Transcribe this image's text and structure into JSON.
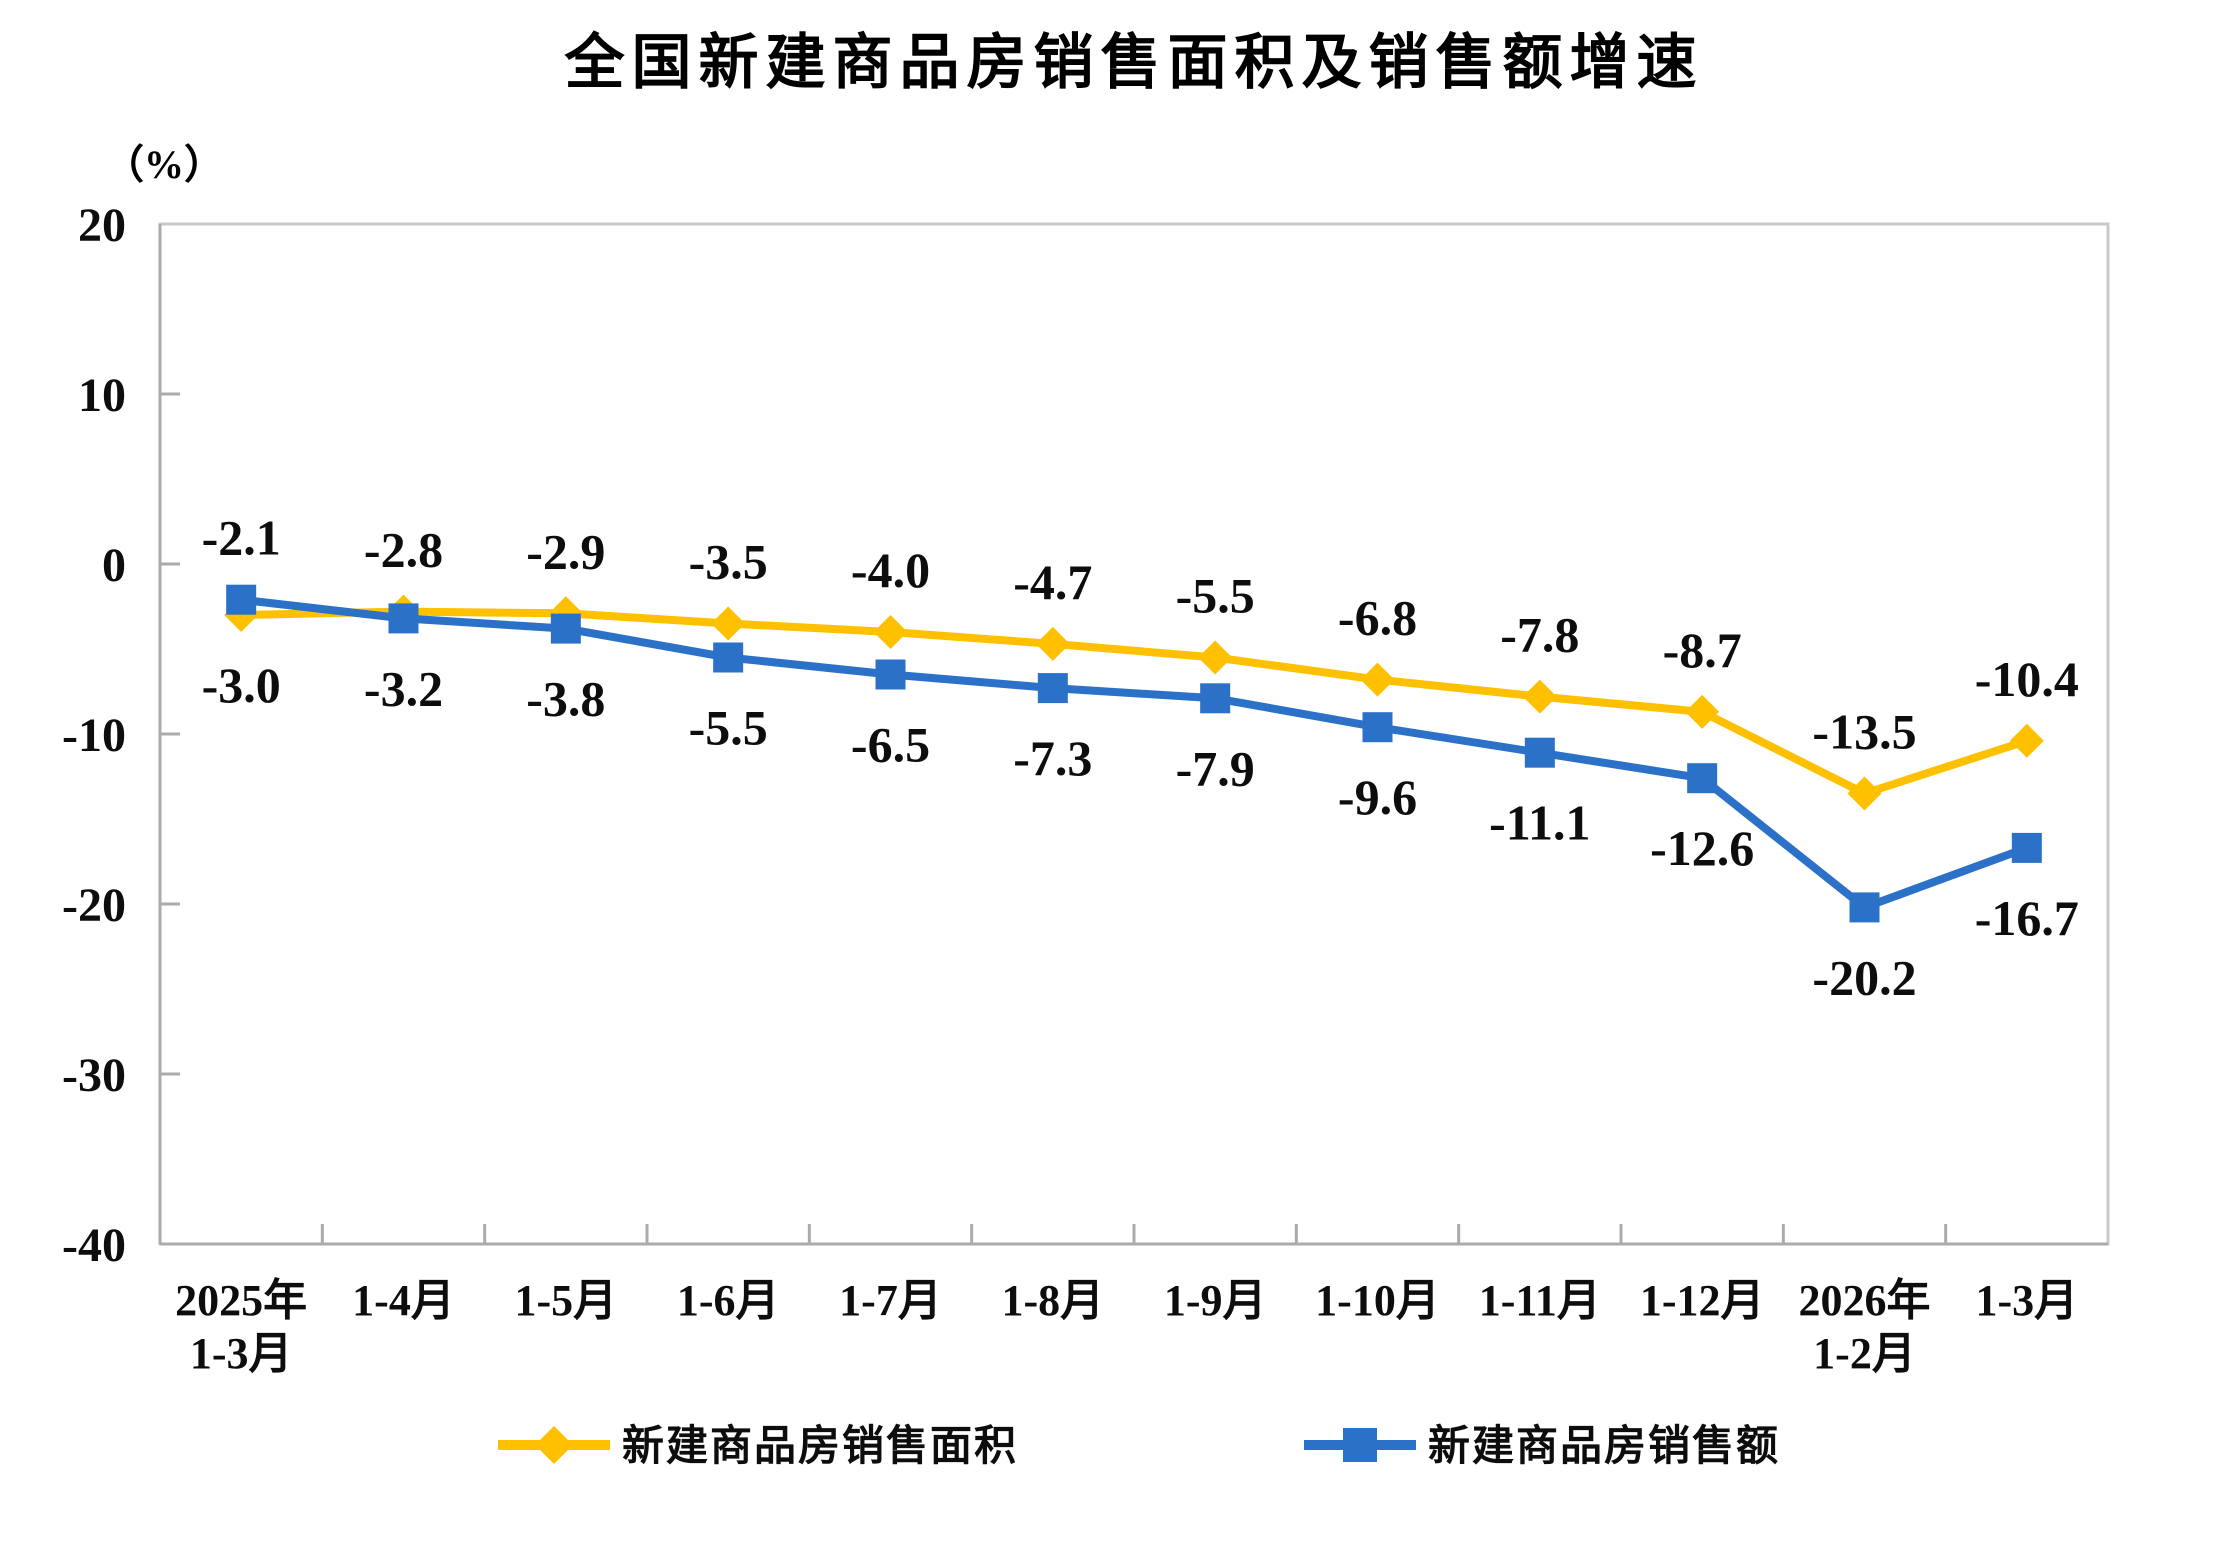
{
  "header": {
    "title": "全国新建商品房销售面积及销售额增速"
  },
  "axes": {
    "unit_label": "（%）"
  },
  "colors": {
    "sales_area_line": "#FFC000",
    "sales_value_line": "#2B71C8",
    "plot_border": "#C9C9C9",
    "axis_line": "#ABABAB",
    "tick": "#ABABAB",
    "label_text": "#0D0D0D",
    "background": "#FFFFFF"
  },
  "chart_data": {
    "type": "line",
    "title": "全国新建商品房销售面积及销售额增速",
    "ylabel": "（%）",
    "xlabel": "",
    "ylim": [
      -40,
      20
    ],
    "yticks": [
      20,
      10,
      0,
      -10,
      -20,
      -30,
      -40
    ],
    "grid": false,
    "plot_border": true,
    "legend_position": "bottom",
    "label_decimals": 1,
    "categories": [
      [
        "2025年",
        "1-3月"
      ],
      [
        "1-4月"
      ],
      [
        "1-5月"
      ],
      [
        "1-6月"
      ],
      [
        "1-7月"
      ],
      [
        "1-8月"
      ],
      [
        "1-9月"
      ],
      [
        "1-10月"
      ],
      [
        "1-11月"
      ],
      [
        "1-12月"
      ],
      [
        "2026年",
        "1-2月"
      ],
      [
        "1-3月"
      ]
    ],
    "series": [
      {
        "name": "新建商品房销售面积",
        "marker": "diamond",
        "color": "#FFC000",
        "values": [
          -3.0,
          -2.8,
          -2.9,
          -3.5,
          -4.0,
          -4.7,
          -5.5,
          -6.8,
          -7.8,
          -8.7,
          -13.5,
          -10.4
        ]
      },
      {
        "name": "新建商品房销售额",
        "marker": "square",
        "color": "#2B71C8",
        "values": [
          -2.1,
          -3.2,
          -3.8,
          -5.5,
          -6.5,
          -7.3,
          -7.9,
          -9.6,
          -11.1,
          -12.6,
          -20.2,
          -16.7
        ]
      }
    ]
  }
}
